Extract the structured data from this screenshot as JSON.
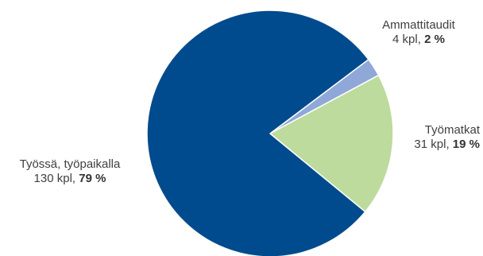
{
  "chart_data": {
    "type": "pie",
    "slices": [
      {
        "name": "Työssä, työpaikalla",
        "count_text": "130 kpl,",
        "percent_text": "79 %",
        "value": 130,
        "percent": 79,
        "color": "#004B8D"
      },
      {
        "name": "Ammattitaudit",
        "count_text": "4 kpl,",
        "percent_text": "2 %",
        "value": 4,
        "percent": 2,
        "color": "#8FA8D8"
      },
      {
        "name": "Työmatkat",
        "count_text": "31 kpl,",
        "percent_text": "19 %",
        "value": 31,
        "percent": 19,
        "color": "#BCDB9C"
      }
    ],
    "legend": "none"
  }
}
